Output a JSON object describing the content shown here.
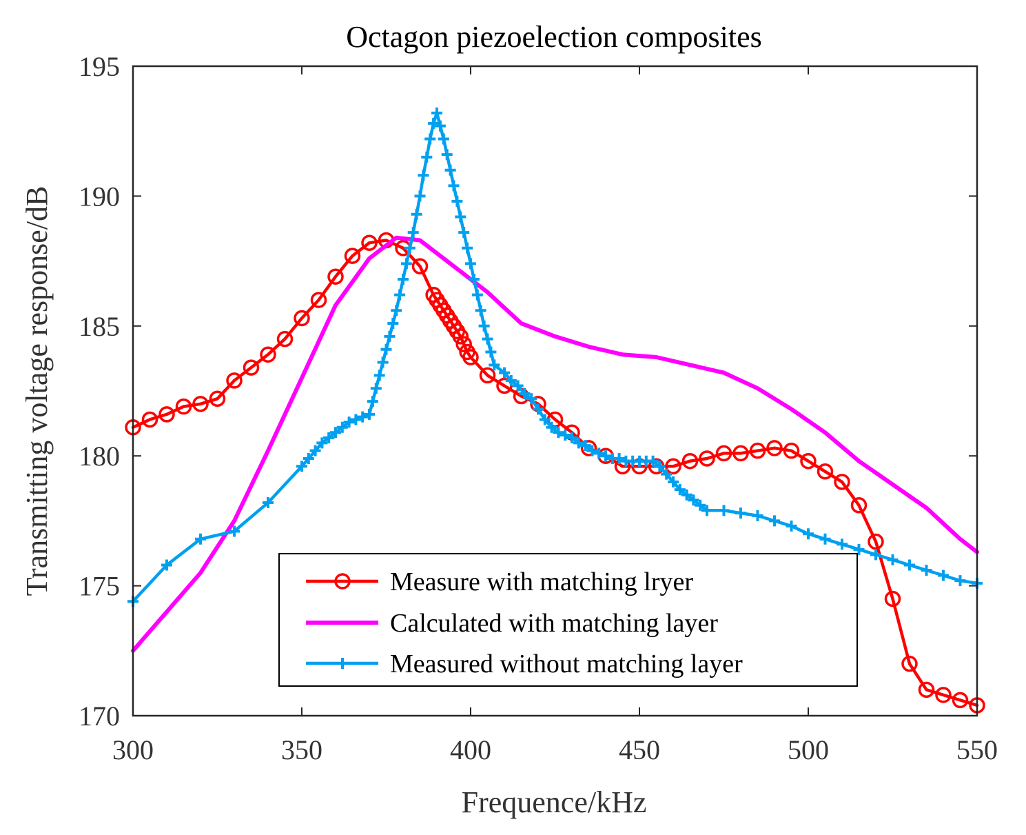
{
  "chart_data": {
    "type": "line",
    "title": "Octagon piezoelection composites",
    "xlabel": "Frequence/kHz",
    "ylabel": "Transmitting voltage response/dB",
    "xlim": [
      300,
      550
    ],
    "ylim": [
      170,
      195
    ],
    "xticks": [
      300,
      350,
      400,
      450,
      500,
      550
    ],
    "yticks": [
      170,
      175,
      180,
      185,
      190,
      195
    ],
    "grid": false,
    "legend_position": "bottom-center",
    "series": [
      {
        "name": "Measure with matching lryer",
        "color": "#ff0000",
        "marker": "circle",
        "points": [
          [
            300,
            181.1
          ],
          [
            305,
            181.4
          ],
          [
            310,
            181.6
          ],
          [
            315,
            181.9
          ],
          [
            320,
            182.0
          ],
          [
            325,
            182.2
          ],
          [
            330,
            182.9
          ],
          [
            335,
            183.4
          ],
          [
            340,
            183.9
          ],
          [
            345,
            184.5
          ],
          [
            350,
            185.3
          ],
          [
            355,
            186.0
          ],
          [
            360,
            186.9
          ],
          [
            365,
            187.7
          ],
          [
            370,
            188.2
          ],
          [
            375,
            188.3
          ],
          [
            380,
            188.0
          ],
          [
            385,
            187.3
          ],
          [
            389,
            186.2
          ],
          [
            390,
            186.0
          ],
          [
            391,
            185.8
          ],
          [
            392,
            185.6
          ],
          [
            393,
            185.4
          ],
          [
            394,
            185.2
          ],
          [
            395,
            185.0
          ],
          [
            396,
            184.8
          ],
          [
            397,
            184.6
          ],
          [
            398,
            184.3
          ],
          [
            399,
            184.0
          ],
          [
            400,
            183.8
          ],
          [
            405,
            183.1
          ],
          [
            410,
            182.7
          ],
          [
            415,
            182.3
          ],
          [
            420,
            182.0
          ],
          [
            425,
            181.4
          ],
          [
            430,
            180.9
          ],
          [
            435,
            180.3
          ],
          [
            440,
            180.0
          ],
          [
            445,
            179.6
          ],
          [
            450,
            179.6
          ],
          [
            455,
            179.6
          ],
          [
            460,
            179.6
          ],
          [
            465,
            179.8
          ],
          [
            470,
            179.9
          ],
          [
            475,
            180.1
          ],
          [
            480,
            180.1
          ],
          [
            485,
            180.2
          ],
          [
            490,
            180.3
          ],
          [
            495,
            180.2
          ],
          [
            500,
            179.8
          ],
          [
            505,
            179.4
          ],
          [
            510,
            179.0
          ],
          [
            515,
            178.1
          ],
          [
            520,
            176.7
          ],
          [
            525,
            174.5
          ],
          [
            530,
            172.0
          ],
          [
            535,
            171.0
          ],
          [
            540,
            170.8
          ],
          [
            545,
            170.6
          ],
          [
            550,
            170.4
          ]
        ]
      },
      {
        "name": "Calculated with matching layer",
        "color": "#ff00ff",
        "marker": "none",
        "points": [
          [
            300,
            172.5
          ],
          [
            310,
            174.0
          ],
          [
            320,
            175.5
          ],
          [
            330,
            177.5
          ],
          [
            340,
            180.2
          ],
          [
            350,
            183.0
          ],
          [
            360,
            185.8
          ],
          [
            370,
            187.6
          ],
          [
            378,
            188.4
          ],
          [
            385,
            188.3
          ],
          [
            395,
            187.3
          ],
          [
            405,
            186.3
          ],
          [
            415,
            185.1
          ],
          [
            425,
            184.6
          ],
          [
            435,
            184.2
          ],
          [
            445,
            183.9
          ],
          [
            455,
            183.8
          ],
          [
            465,
            183.5
          ],
          [
            475,
            183.2
          ],
          [
            485,
            182.6
          ],
          [
            495,
            181.8
          ],
          [
            505,
            180.9
          ],
          [
            515,
            179.8
          ],
          [
            525,
            178.9
          ],
          [
            535,
            178.0
          ],
          [
            545,
            176.8
          ],
          [
            550,
            176.3
          ]
        ]
      },
      {
        "name": "Measured without matching layer",
        "color": "#00a0f0",
        "marker": "plus",
        "points": [
          [
            300,
            174.4
          ],
          [
            310,
            175.8
          ],
          [
            320,
            176.8
          ],
          [
            330,
            177.1
          ],
          [
            340,
            178.2
          ],
          [
            350,
            179.6
          ],
          [
            352,
            179.9
          ],
          [
            354,
            180.2
          ],
          [
            356,
            180.5
          ],
          [
            358,
            180.7
          ],
          [
            360,
            180.9
          ],
          [
            362,
            181.1
          ],
          [
            364,
            181.3
          ],
          [
            366,
            181.4
          ],
          [
            368,
            181.5
          ],
          [
            370,
            181.6
          ],
          [
            371,
            182.1
          ],
          [
            372,
            182.6
          ],
          [
            373,
            183.1
          ],
          [
            374,
            183.6
          ],
          [
            375,
            184.1
          ],
          [
            376,
            184.6
          ],
          [
            377,
            185.1
          ],
          [
            378,
            185.6
          ],
          [
            379,
            186.2
          ],
          [
            380,
            186.8
          ],
          [
            381,
            187.4
          ],
          [
            382,
            188.0
          ],
          [
            383,
            188.6
          ],
          [
            384,
            189.3
          ],
          [
            385,
            190.0
          ],
          [
            386,
            190.8
          ],
          [
            387,
            191.5
          ],
          [
            388,
            192.2
          ],
          [
            389,
            192.8
          ],
          [
            390,
            193.2
          ],
          [
            391,
            192.7
          ],
          [
            392,
            192.2
          ],
          [
            393,
            191.6
          ],
          [
            394,
            191.0
          ],
          [
            395,
            190.4
          ],
          [
            396,
            189.8
          ],
          [
            397,
            189.2
          ],
          [
            398,
            188.6
          ],
          [
            399,
            188.0
          ],
          [
            400,
            187.4
          ],
          [
            401,
            186.8
          ],
          [
            402,
            186.2
          ],
          [
            403,
            185.6
          ],
          [
            404,
            185.0
          ],
          [
            405,
            184.5
          ],
          [
            406,
            184.0
          ],
          [
            407,
            183.5
          ],
          [
            410,
            183.2
          ],
          [
            412,
            182.9
          ],
          [
            414,
            182.7
          ],
          [
            416,
            182.4
          ],
          [
            418,
            182.2
          ],
          [
            420,
            181.8
          ],
          [
            422,
            181.4
          ],
          [
            424,
            181.1
          ],
          [
            426,
            180.9
          ],
          [
            428,
            180.8
          ],
          [
            430,
            180.7
          ],
          [
            432,
            180.5
          ],
          [
            434,
            180.4
          ],
          [
            436,
            180.2
          ],
          [
            438,
            180.1
          ],
          [
            440,
            180.0
          ],
          [
            442,
            179.9
          ],
          [
            444,
            179.9
          ],
          [
            446,
            179.8
          ],
          [
            448,
            179.8
          ],
          [
            450,
            179.8
          ],
          [
            452,
            179.8
          ],
          [
            454,
            179.8
          ],
          [
            456,
            179.6
          ],
          [
            458,
            179.3
          ],
          [
            460,
            179.0
          ],
          [
            462,
            178.7
          ],
          [
            464,
            178.5
          ],
          [
            466,
            178.3
          ],
          [
            468,
            178.1
          ],
          [
            470,
            177.9
          ],
          [
            475,
            177.9
          ],
          [
            480,
            177.8
          ],
          [
            485,
            177.7
          ],
          [
            490,
            177.5
          ],
          [
            495,
            177.3
          ],
          [
            500,
            177.0
          ],
          [
            505,
            176.8
          ],
          [
            510,
            176.6
          ],
          [
            515,
            176.4
          ],
          [
            520,
            176.2
          ],
          [
            525,
            176.0
          ],
          [
            530,
            175.8
          ],
          [
            535,
            175.6
          ],
          [
            540,
            175.4
          ],
          [
            545,
            175.2
          ],
          [
            550,
            175.1
          ]
        ]
      }
    ]
  }
}
